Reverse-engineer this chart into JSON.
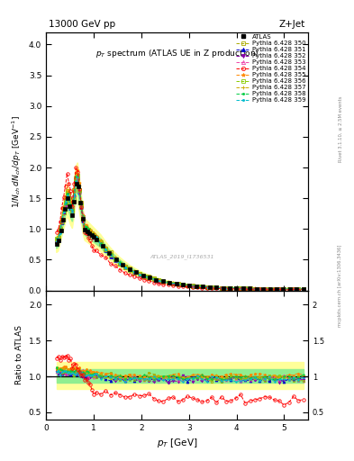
{
  "title_top": "13000 GeV pp",
  "title_right": "Z+Jet",
  "plot_title": "p_{T} spectrum (ATLAS UE in Z production)",
  "ylabel_main": "1/N_{ch} dN_{ch}/dp_{T} [GeV$^{-1}$]",
  "ylabel_ratio": "Ratio to ATLAS",
  "xlabel": "p_{T} [GeV]",
  "right_label1": "Rivet 3.1.10, ≥ 2.5M events",
  "right_label2": "mcplots.cern.ch [arXiv:1306.3436]",
  "watermark": "ATLAS_2019_I1736531",
  "xlim": [
    0,
    5.5
  ],
  "ylim_main": [
    0,
    4.2
  ],
  "ylim_ratio": [
    0.4,
    2.2
  ],
  "band_colors_outer": "#ffff99",
  "band_colors_inner": "#90ee90",
  "mc_configs": [
    350,
    351,
    352,
    353,
    354,
    355,
    356,
    357,
    358,
    359
  ],
  "tune_styles": {
    "350": {
      "color": "#aaaa00",
      "marker": "s",
      "mfc": "none",
      "ls": "--"
    },
    "351": {
      "color": "#0000cc",
      "marker": "^",
      "mfc": "#0000cc",
      "ls": "--"
    },
    "352": {
      "color": "#8800aa",
      "marker": "v",
      "mfc": "#8800aa",
      "ls": "--"
    },
    "353": {
      "color": "#ee44aa",
      "marker": "^",
      "mfc": "none",
      "ls": "--"
    },
    "354": {
      "color": "#ff0000",
      "marker": "o",
      "mfc": "none",
      "ls": "--"
    },
    "355": {
      "color": "#ff8800",
      "marker": "*",
      "mfc": "#ff8800",
      "ls": "--"
    },
    "356": {
      "color": "#88cc00",
      "marker": "s",
      "mfc": "none",
      "ls": "--"
    },
    "357": {
      "color": "#ccaa00",
      "marker": "+",
      "mfc": "#ccaa00",
      "ls": "--"
    },
    "358": {
      "color": "#00cc44",
      "marker": ".",
      "mfc": "#00cc44",
      "ls": "--"
    },
    "359": {
      "color": "#00bbcc",
      "marker": ".",
      "mfc": "#00bbcc",
      "ls": "--"
    }
  },
  "tune_labels": {
    "350": "Pythia 6.428 350",
    "351": "Pythia 6.428 351",
    "352": "Pythia 6.428 352",
    "353": "Pythia 6.428 353",
    "354": "Pythia 6.428 354",
    "355": "Pythia 6.428 355",
    "356": "Pythia 6.428 356",
    "357": "Pythia 6.428 357",
    "358": "Pythia 6.428 358",
    "359": "Pythia 6.428 359"
  }
}
